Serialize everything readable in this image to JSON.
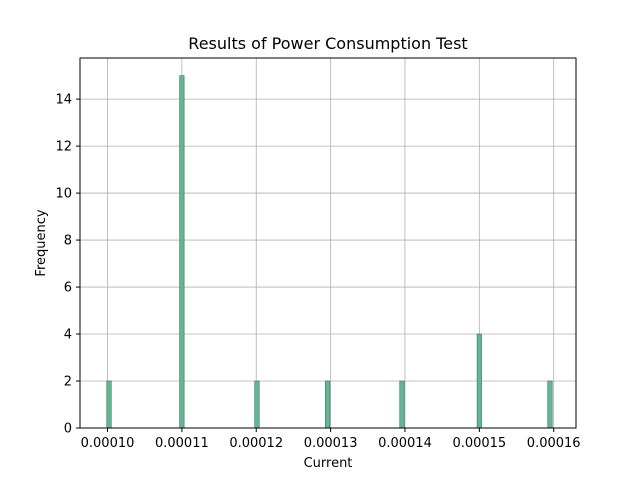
{
  "chart_data": {
    "type": "bar",
    "title": "Results of Power Consumption Test",
    "xlabel": "Current",
    "ylabel": "Frequency",
    "x_ticks": [
      "0.00010",
      "0.00011",
      "0.00012",
      "0.00013",
      "0.00014",
      "0.00015",
      "0.00016"
    ],
    "y_ticks": [
      "0",
      "2",
      "4",
      "6",
      "8",
      "10",
      "12",
      "14"
    ],
    "xlim": [
      9.63e-05,
      0.000163
    ],
    "ylim": [
      0,
      15.75
    ],
    "grid": true,
    "bars": [
      {
        "x": 0.0001002,
        "value": 2
      },
      {
        "x": 0.00011,
        "value": 15
      },
      {
        "x": 0.0001201,
        "value": 2
      },
      {
        "x": 0.0001296,
        "value": 2
      },
      {
        "x": 0.0001396,
        "value": 2
      },
      {
        "x": 0.00015,
        "value": 4
      },
      {
        "x": 0.0001595,
        "value": 2
      }
    ],
    "bar_color": "#66b395",
    "bar_edge_color": "#2f7a5c"
  }
}
